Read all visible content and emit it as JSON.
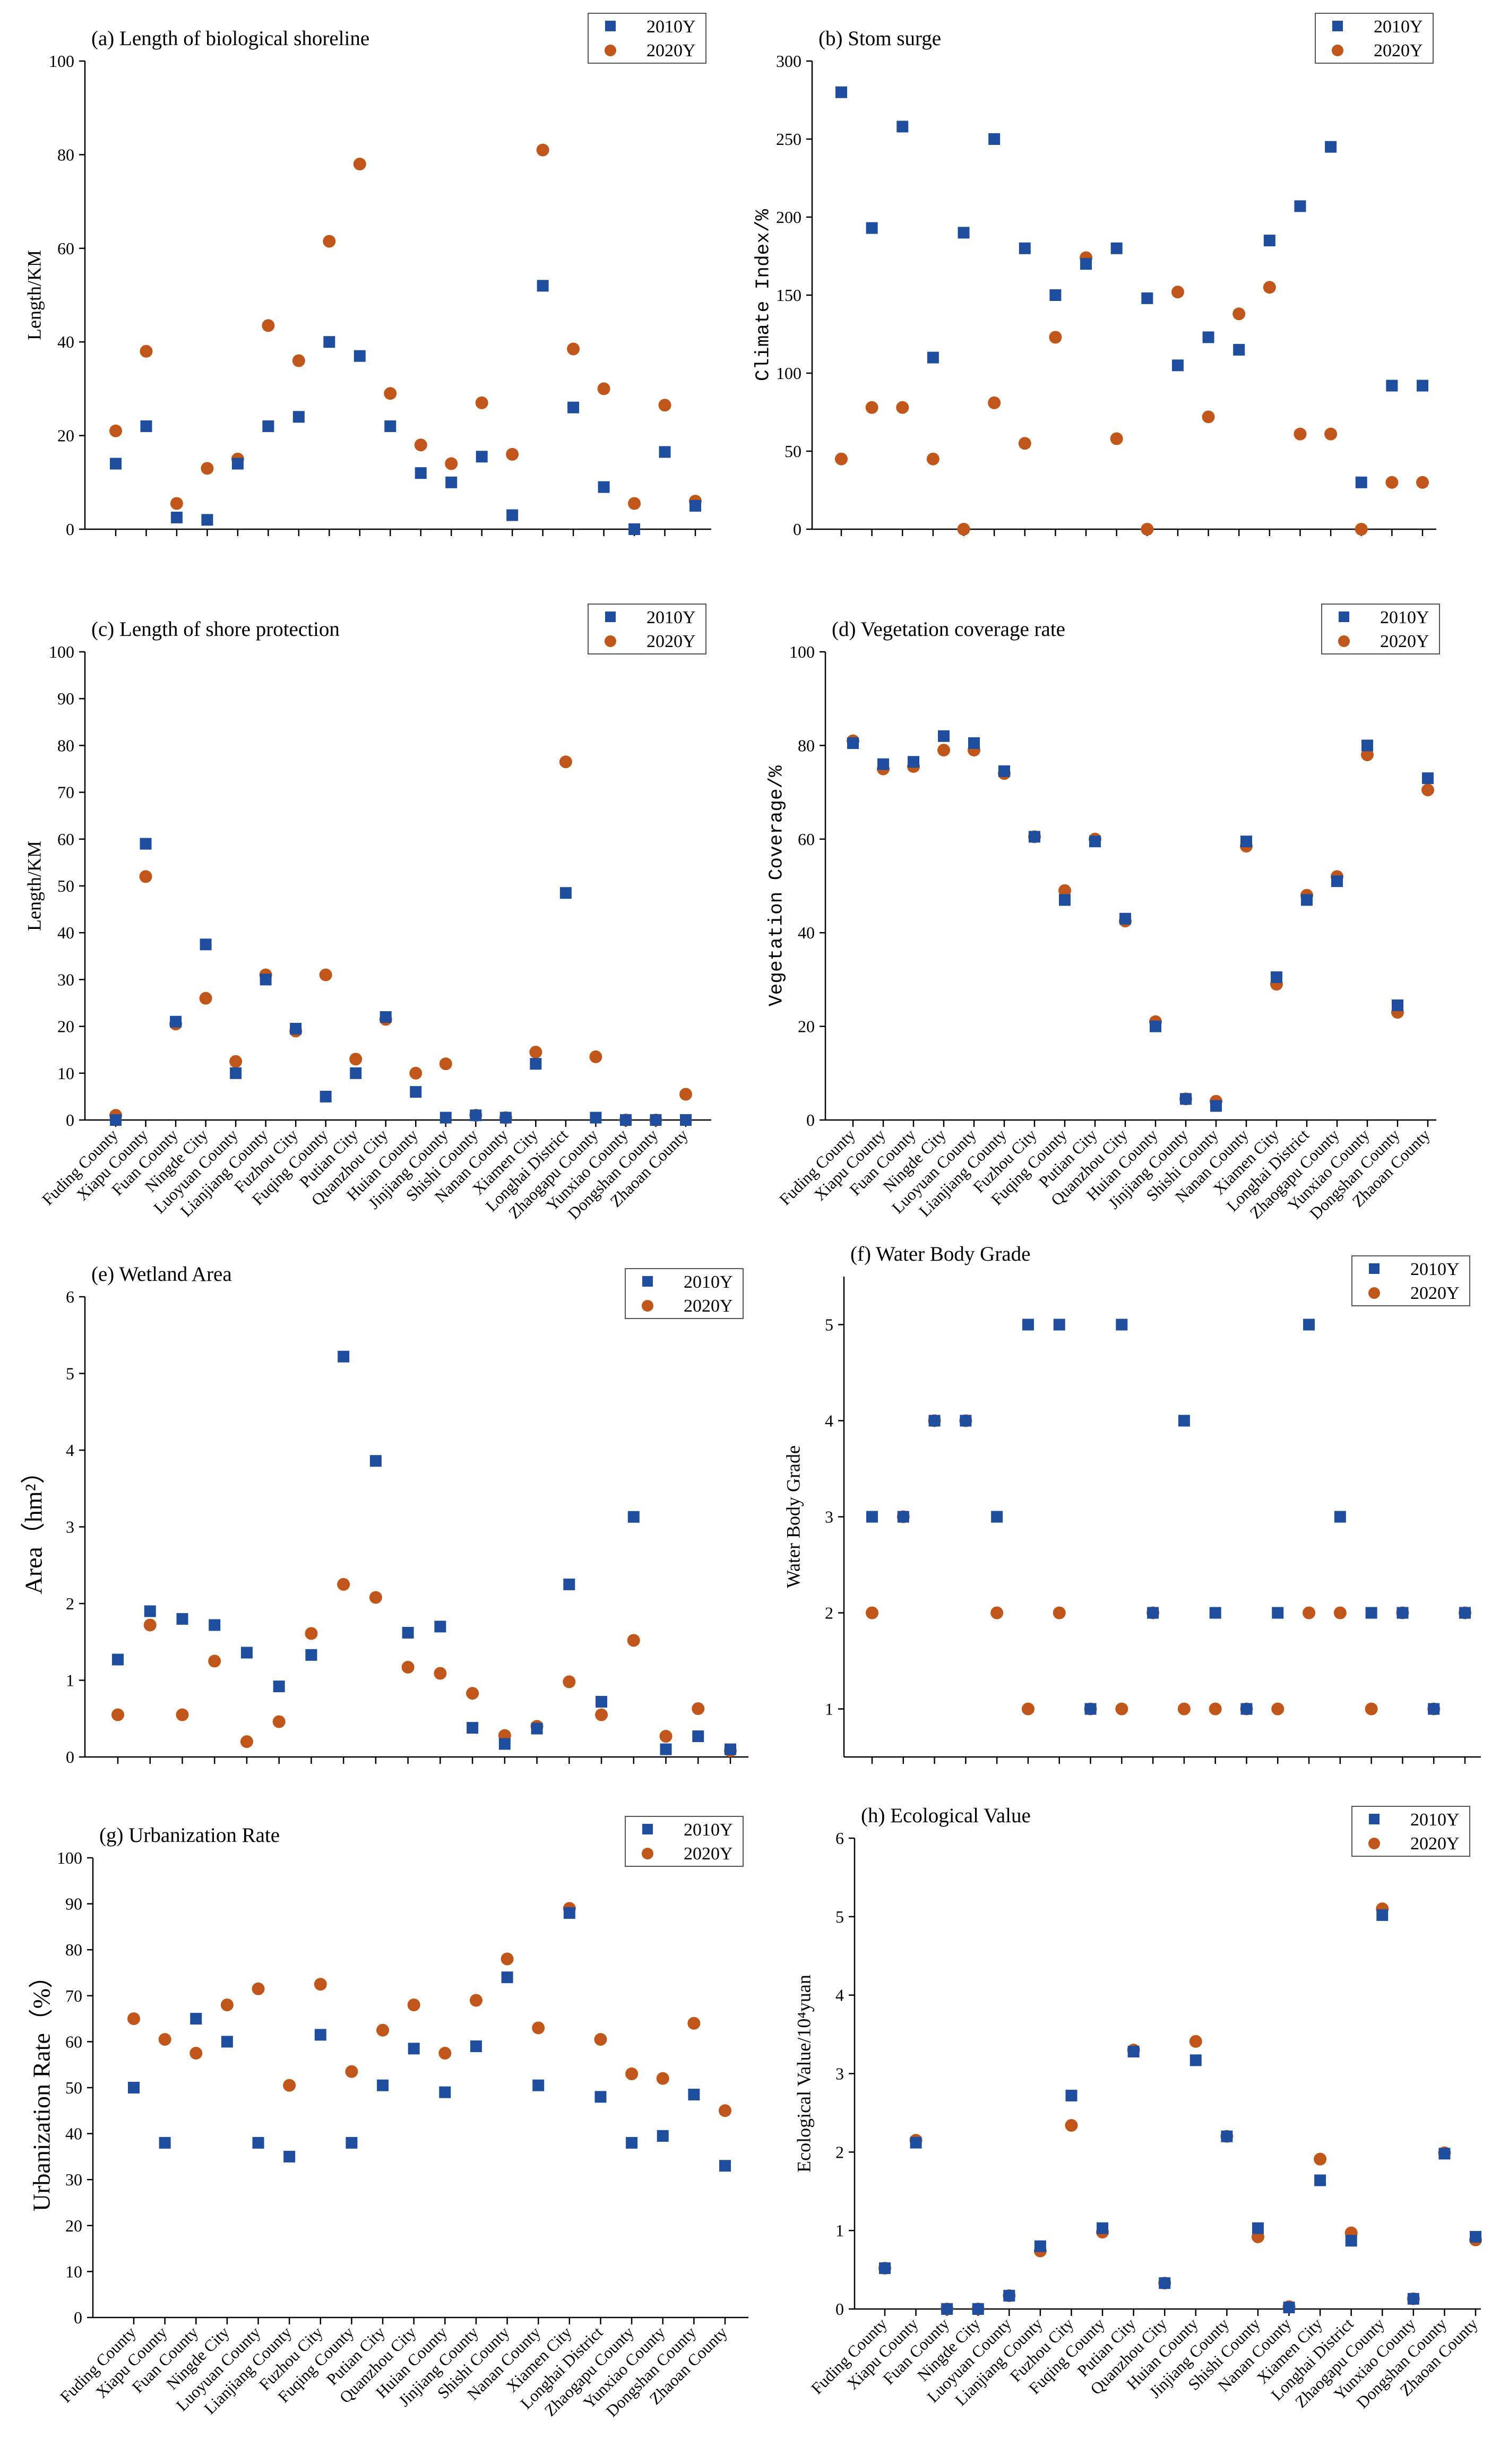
{
  "colors": {
    "series2010": "#1f4e9e",
    "series2020": "#c0561a",
    "axis": "#000000"
  },
  "legend": {
    "s2010": "2010Y",
    "s2020": "2020Y"
  },
  "categories": [
    "Fuding County",
    "Xiapu County",
    "Fuan County",
    "Ningde City",
    "Luoyuan County",
    "Lianjiang County",
    "Fuzhou City",
    "Fuqing County",
    "Putian City",
    "Quanzhou City",
    "Huian County",
    "Jinjiang County",
    "Shishi County",
    "Nanan County",
    "Xiamen City",
    "Longhai District",
    "Zhaogapu County",
    "Yunxiao County",
    "Dongshan County",
    "Zhaoan County"
  ],
  "chart_data": [
    {
      "type": "scatter",
      "title": "(a) Length of biological shoreline",
      "ylabel": "Length/KM",
      "ylim": [
        0,
        100
      ],
      "yticks": [
        "0",
        "20",
        "40",
        "60",
        "80",
        "100"
      ],
      "series": [
        {
          "name": "2010Y",
          "values": [
            14,
            22,
            2.5,
            2,
            14,
            22,
            24,
            40,
            37,
            22,
            12,
            10,
            15.5,
            3,
            52,
            26,
            9,
            0,
            16.5,
            5
          ]
        },
        {
          "name": "2020Y",
          "values": [
            21,
            38,
            5.5,
            13,
            15,
            43.5,
            36,
            61.5,
            78,
            29,
            18,
            14,
            27,
            16,
            81,
            38.5,
            30,
            5.5,
            26.5,
            6
          ]
        }
      ]
    },
    {
      "type": "scatter",
      "title": "(b) Stom surge",
      "ylabel": "Climate Index/%",
      "ylim": [
        0,
        300
      ],
      "yticks": [
        "0",
        "50",
        "100",
        "150",
        "200",
        "250",
        "300"
      ],
      "series": [
        {
          "name": "2010Y",
          "values": [
            280,
            193,
            258,
            110,
            190,
            250,
            180,
            150,
            170,
            180,
            148,
            105,
            123,
            115,
            185,
            207,
            245,
            30,
            92,
            92
          ]
        },
        {
          "name": "2020Y",
          "values": [
            45,
            78,
            78,
            45,
            0,
            81,
            55,
            123,
            174,
            58,
            0,
            152,
            72,
            138,
            155,
            61,
            61,
            0,
            30,
            30
          ]
        }
      ]
    },
    {
      "type": "scatter",
      "title": "(c) Length of shore protection",
      "ylabel": "Length/KM",
      "ylim": [
        0,
        100
      ],
      "yticks": [
        "0",
        "10",
        "20",
        "30",
        "40",
        "50",
        "60",
        "70",
        "80",
        "90",
        "100"
      ],
      "series": [
        {
          "name": "2010Y",
          "values": [
            0,
            59,
            21,
            37.5,
            10,
            30,
            19.5,
            5,
            10,
            22,
            6,
            0.5,
            1,
            0.5,
            12,
            48.5,
            0.5,
            0,
            0,
            0
          ]
        },
        {
          "name": "2020Y",
          "values": [
            1,
            52,
            20.5,
            26,
            12.5,
            31,
            19,
            31,
            13,
            21.5,
            10,
            12,
            1,
            0.5,
            14.5,
            76.5,
            13.5,
            0,
            0,
            5.5
          ]
        }
      ]
    },
    {
      "type": "scatter",
      "title": "(d) Vegetation coverage rate",
      "ylabel": "Vegetation Coverage/%",
      "ylim": [
        0,
        100
      ],
      "yticks": [
        "0",
        "20",
        "40",
        "60",
        "80",
        "100"
      ],
      "series": [
        {
          "name": "2010Y",
          "values": [
            80.5,
            76,
            76.5,
            82,
            80.5,
            74.5,
            60.5,
            47,
            59.5,
            43,
            20,
            4.5,
            3,
            59.5,
            30.5,
            47,
            51,
            80,
            24.5,
            73
          ]
        },
        {
          "name": "2020Y",
          "values": [
            81,
            75,
            75.5,
            79,
            79,
            74,
            60.5,
            49,
            60,
            42.5,
            21,
            4.5,
            4,
            58.5,
            29,
            48,
            52,
            78,
            23,
            70.5
          ]
        }
      ]
    },
    {
      "type": "scatter",
      "title": "(e) Wetland Area",
      "ylabel": "Area（hm²）",
      "ylim": [
        0,
        6
      ],
      "yticks": [
        "0",
        "1",
        "2",
        "3",
        "4",
        "5",
        "6"
      ],
      "series": [
        {
          "name": "2010Y",
          "values": [
            1.27,
            1.9,
            1.8,
            1.72,
            1.36,
            0.92,
            1.33,
            5.22,
            3.86,
            1.62,
            1.7,
            0.38,
            0.17,
            0.37,
            2.25,
            0.72,
            3.13,
            0.1,
            0.27,
            0.1
          ]
        },
        {
          "name": "2020Y",
          "values": [
            0.55,
            1.72,
            0.55,
            1.25,
            0.2,
            0.46,
            1.61,
            2.25,
            2.08,
            1.17,
            1.09,
            0.83,
            0.28,
            0.4,
            0.98,
            0.55,
            1.52,
            0.27,
            0.63,
            0.08
          ]
        }
      ]
    },
    {
      "type": "scatter",
      "title": "(f) Water Body Grade",
      "ylabel": "Water Body Grade",
      "ylim": [
        0.5,
        5.5
      ],
      "yticks": [
        "1",
        "2",
        "3",
        "4",
        "5"
      ],
      "series": [
        {
          "name": "2010Y",
          "values": [
            3,
            3,
            4,
            4,
            3,
            5,
            5,
            1,
            5,
            2,
            4,
            2,
            1,
            2,
            5,
            3,
            2,
            2,
            1,
            2
          ]
        },
        {
          "name": "2020Y",
          "values": [
            2,
            3,
            4,
            4,
            2,
            1,
            2,
            1,
            1,
            2,
            1,
            1,
            1,
            1,
            2,
            2,
            1,
            2,
            1,
            2
          ]
        }
      ]
    },
    {
      "type": "scatter",
      "title": "(g) Urbanization Rate",
      "ylabel": "Urbanization Rate（%）",
      "ylim": [
        0,
        100
      ],
      "yticks": [
        "0",
        "10",
        "20",
        "30",
        "40",
        "50",
        "60",
        "70",
        "80",
        "90",
        "100"
      ],
      "series": [
        {
          "name": "2010Y",
          "values": [
            50,
            38,
            65,
            60,
            38,
            35,
            61.5,
            38,
            50.5,
            58.5,
            49,
            59,
            74,
            50.5,
            88,
            48,
            38,
            39.5,
            48.5,
            33
          ]
        },
        {
          "name": "2020Y",
          "values": [
            65,
            60.5,
            57.5,
            68,
            71.5,
            50.5,
            72.5,
            53.5,
            62.5,
            68,
            57.5,
            69,
            78,
            63,
            89,
            60.5,
            53,
            52,
            64,
            45
          ]
        }
      ]
    },
    {
      "type": "scatter",
      "title": "(h) Ecological Value",
      "ylabel": "Ecological Value/10⁴yuan",
      "ylim": [
        0,
        6
      ],
      "yticks": [
        "0",
        "1",
        "2",
        "3",
        "4",
        "5",
        "6"
      ],
      "series": [
        {
          "name": "2010Y",
          "values": [
            0.52,
            2.12,
            0,
            0,
            0.17,
            0.8,
            2.72,
            1.03,
            3.28,
            0.33,
            3.17,
            2.2,
            1.03,
            0.02,
            1.64,
            0.87,
            5.02,
            0.13,
            1.98,
            0.92
          ]
        },
        {
          "name": "2020Y",
          "values": [
            0.52,
            2.15,
            0,
            0,
            0.17,
            0.74,
            2.34,
            0.98,
            3.3,
            0.33,
            3.41,
            2.2,
            0.92,
            0.03,
            1.91,
            0.97,
            5.1,
            0.13,
            1.99,
            0.88
          ]
        }
      ]
    }
  ]
}
